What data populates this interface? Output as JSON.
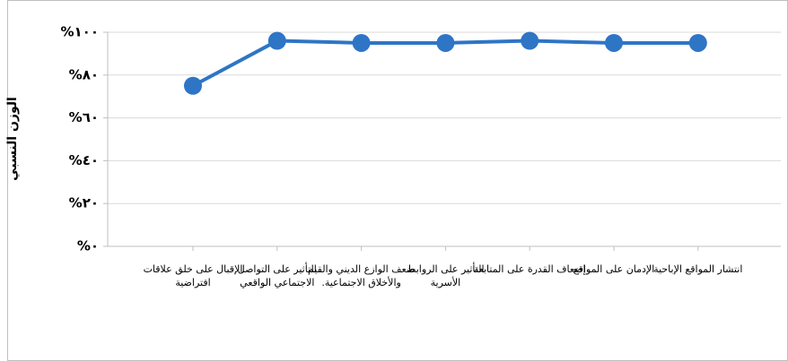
{
  "chart_data": {
    "type": "line",
    "y_label": "الوزن النسبي",
    "categories": [
      "الإقبال على خلق علاقات افتراضية",
      "التأثير على التواصل الاجتماعي الواقعي",
      "ضعف الوازع الديني والقيم والأخلاق الاجتماعية.",
      "التأثير على الروابط الأسرية",
      "إضعاف القدرة على المتابعة",
      "الإدمان على المواقع",
      "انتشار المواقع الإباحية"
    ],
    "series": [
      {
        "name": "الوزن النسبي",
        "color": "#2e75c6",
        "values": [
          75,
          96,
          95,
          95,
          96,
          95,
          95
        ]
      }
    ],
    "ylim": [
      0,
      100
    ],
    "yticks": [
      {
        "value": 0,
        "label": "%٠"
      },
      {
        "value": 20,
        "label": "%٢٠"
      },
      {
        "value": 40,
        "label": "%٤٠"
      },
      {
        "value": 60,
        "label": "%٦٠"
      },
      {
        "value": 80,
        "label": "%٨٠"
      },
      {
        "value": 100,
        "label": "%١٠٠"
      }
    ],
    "grid": true
  }
}
